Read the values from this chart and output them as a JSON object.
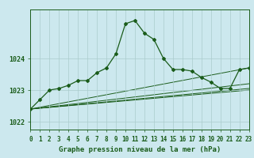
{
  "background_color": "#cce8ee",
  "grid_color": "#aacccc",
  "line_color": "#1a5c1a",
  "title": "Graphe pression niveau de la mer (hPa)",
  "tick_fontsize": 5.5,
  "title_fontsize": 6.5,
  "xlim": [
    0,
    23
  ],
  "ylim": [
    1021.75,
    1025.55
  ],
  "yticks": [
    1022,
    1023,
    1024
  ],
  "xticks": [
    0,
    1,
    2,
    3,
    4,
    5,
    6,
    7,
    8,
    9,
    10,
    11,
    12,
    13,
    14,
    15,
    16,
    17,
    18,
    19,
    20,
    21,
    22,
    23
  ],
  "main": [
    [
      0,
      1022.4
    ],
    [
      1,
      1022.7
    ],
    [
      2,
      1023.0
    ],
    [
      3,
      1023.05
    ],
    [
      4,
      1023.15
    ],
    [
      5,
      1023.3
    ],
    [
      6,
      1023.3
    ],
    [
      7,
      1023.55
    ],
    [
      8,
      1023.7
    ],
    [
      9,
      1024.15
    ],
    [
      10,
      1025.1
    ],
    [
      11,
      1025.2
    ],
    [
      12,
      1024.8
    ],
    [
      13,
      1024.6
    ],
    [
      14,
      1024.0
    ],
    [
      15,
      1023.65
    ],
    [
      16,
      1023.65
    ],
    [
      17,
      1023.6
    ],
    [
      18,
      1023.4
    ],
    [
      19,
      1023.25
    ],
    [
      20,
      1023.05
    ],
    [
      21,
      1023.05
    ],
    [
      22,
      1023.65
    ],
    [
      23,
      1023.7
    ]
  ],
  "ref_lines": [
    [
      [
        0,
        1022.4
      ],
      [
        23,
        1023.7
      ]
    ],
    [
      [
        0,
        1022.4
      ],
      [
        23,
        1023.2
      ]
    ],
    [
      [
        0,
        1022.4
      ],
      [
        23,
        1023.05
      ]
    ],
    [
      [
        0,
        1022.4
      ],
      [
        23,
        1023.0
      ]
    ]
  ]
}
